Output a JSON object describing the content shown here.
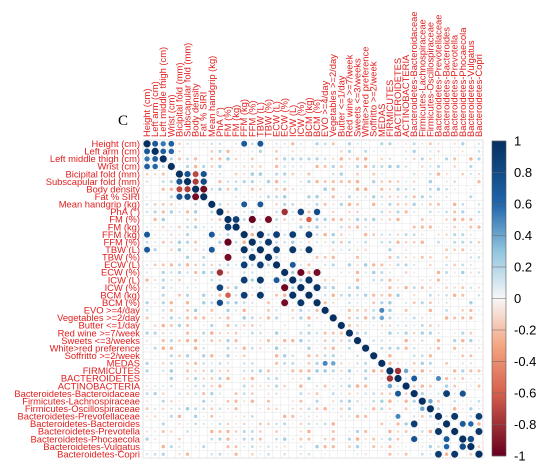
{
  "chart_data": {
    "type": "heatmap",
    "subtype": "correlogram (circles, upper + lower)",
    "panel_label": "C",
    "variables": [
      "Height (cm)",
      "Left arm (cm)",
      "Left middle thigh (cm)",
      "Wrist (cm)",
      "Bicipital fold (mm)",
      "Subscapular fold (mm)",
      "Body density",
      "Fat % SIRI",
      "Mean handgrip (kg)",
      "PhA (°)",
      "FM (%)",
      "FM (kg)",
      "FFM (kg)",
      "FFM (%)",
      "TBW (L)",
      "TBW (%)",
      "ECW (L)",
      "ECW (%)",
      "ICW (L)",
      "ICW (%)",
      "BCM (kg)",
      "BCM (%)",
      "EVO >=4/day",
      "Vegetables >=2/day",
      "Butter <=1/day",
      "Red wine >=7/week",
      "Sweets <=3/weeks",
      "White>red preference",
      "Soffritto >=2/week",
      "MEDAS",
      "FIRMICUTES",
      "BACTEROIDETES",
      "ACTINOBACTERIA",
      "Bacteroidetes-Bacteroidaceae",
      "Firmicutes-Lachnospiraceae",
      "Firmicutes-Oscillospiraceae",
      "Bacteroidetes-Prevotellaceae",
      "Bacteroidetes-Bacteroides",
      "Bacteroidetes-Prevotella",
      "Bacteroidetes-Phocaecola",
      "Bacteroidetes-Vulgatus",
      "Bacteroidetes-Copri"
    ],
    "value_range": [
      -1,
      1
    ],
    "colorbar": {
      "ticks": [
        "1",
        "0.8",
        "0.6",
        "0.4",
        "0.2",
        "0",
        "-0.2",
        "-0.4",
        "-0.6",
        "-0.8",
        "-1"
      ],
      "high_color": "#053061",
      "mid_color": "#f7f7f7",
      "low_color": "#67001f"
    },
    "diagonal": 1,
    "notable_correlations": [
      [
        0,
        1,
        0.7
      ],
      [
        0,
        2,
        0.55
      ],
      [
        0,
        3,
        0.65
      ],
      [
        0,
        12,
        0.7
      ],
      [
        0,
        14,
        0.7
      ],
      [
        1,
        2,
        0.65
      ],
      [
        1,
        3,
        0.6
      ],
      [
        4,
        5,
        0.75
      ],
      [
        4,
        6,
        -0.7
      ],
      [
        4,
        7,
        0.75
      ],
      [
        5,
        6,
        -0.75
      ],
      [
        5,
        7,
        0.8
      ],
      [
        6,
        7,
        -0.95
      ],
      [
        8,
        12,
        0.7
      ],
      [
        8,
        14,
        0.7
      ],
      [
        10,
        11,
        0.9
      ],
      [
        10,
        13,
        -1.0
      ],
      [
        10,
        15,
        -0.95
      ],
      [
        10,
        20,
        -0.6
      ],
      [
        12,
        14,
        0.98
      ],
      [
        12,
        16,
        0.9
      ],
      [
        12,
        18,
        0.9
      ],
      [
        12,
        20,
        0.9
      ],
      [
        13,
        15,
        0.95
      ],
      [
        14,
        16,
        0.9
      ],
      [
        14,
        18,
        0.95
      ],
      [
        14,
        20,
        0.95
      ],
      [
        9,
        17,
        -0.8
      ],
      [
        9,
        19,
        0.85
      ],
      [
        9,
        21,
        0.8
      ],
      [
        17,
        19,
        -0.98
      ],
      [
        17,
        21,
        -0.95
      ],
      [
        16,
        18,
        0.7
      ],
      [
        18,
        20,
        0.98
      ],
      [
        19,
        21,
        0.95
      ],
      [
        22,
        29,
        0.5
      ],
      [
        23,
        29,
        0.4
      ],
      [
        30,
        31,
        -0.8
      ],
      [
        30,
        32,
        0.4
      ],
      [
        31,
        33,
        0.7
      ],
      [
        31,
        36,
        0.5
      ],
      [
        33,
        37,
        0.9
      ],
      [
        33,
        39,
        0.75
      ],
      [
        36,
        38,
        0.95
      ],
      [
        36,
        41,
        0.9
      ],
      [
        38,
        41,
        0.95
      ],
      [
        39,
        40,
        0.8
      ],
      [
        37,
        39,
        0.7
      ],
      [
        34,
        35,
        0.4
      ],
      [
        37,
        40,
        0.6
      ]
    ]
  }
}
